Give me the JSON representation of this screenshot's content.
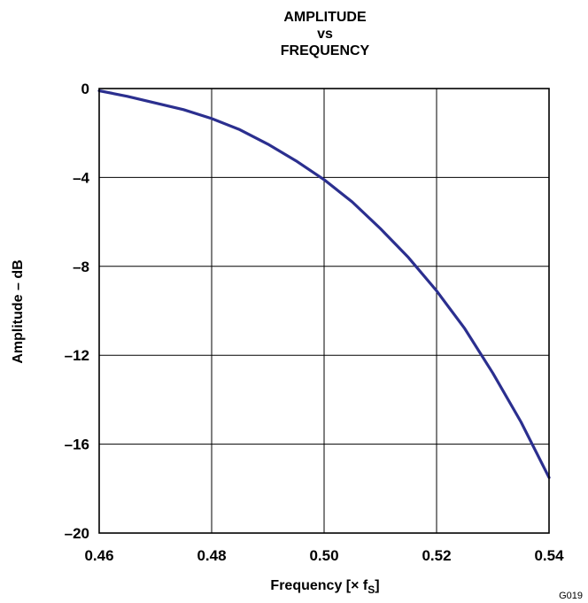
{
  "chart_data": {
    "type": "line",
    "title_lines": [
      "AMPLITUDE",
      "vs",
      "FREQUENCY"
    ],
    "xlabel": "Frequency [× f",
    "xlabel_sub": "S",
    "xlabel_end": "]",
    "ylabel": "Amplitude – dB",
    "xlim": [
      0.46,
      0.54
    ],
    "ylim": [
      -20,
      0
    ],
    "xticks": [
      {
        "value": 0.46,
        "label": "0.46"
      },
      {
        "value": 0.48,
        "label": "0.48"
      },
      {
        "value": 0.5,
        "label": "0.50"
      },
      {
        "value": 0.52,
        "label": "0.52"
      },
      {
        "value": 0.54,
        "label": "0.54"
      }
    ],
    "yticks": [
      {
        "value": 0,
        "label": "0"
      },
      {
        "value": -4,
        "label": "–4"
      },
      {
        "value": -8,
        "label": "–8"
      },
      {
        "value": -12,
        "label": "–12"
      },
      {
        "value": -16,
        "label": "–16"
      },
      {
        "value": -20,
        "label": "–20"
      }
    ],
    "grid": true,
    "series": [
      {
        "color": "#2b2f8f",
        "x": [
          0.46,
          0.465,
          0.47,
          0.475,
          0.48,
          0.485,
          0.49,
          0.495,
          0.5,
          0.505,
          0.51,
          0.515,
          0.52,
          0.525,
          0.53,
          0.535,
          0.54
        ],
        "y": [
          -0.1,
          -0.35,
          -0.65,
          -0.95,
          -1.35,
          -1.85,
          -2.5,
          -3.25,
          -4.1,
          -5.1,
          -6.3,
          -7.6,
          -9.1,
          -10.8,
          -12.8,
          -15.0,
          -17.5
        ]
      }
    ],
    "reference_code": "G019"
  }
}
